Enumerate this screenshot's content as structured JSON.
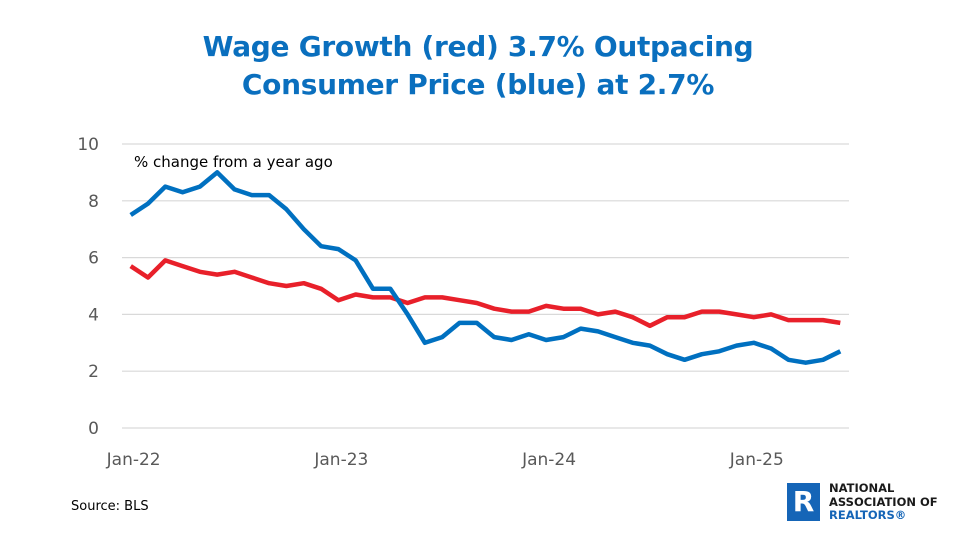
{
  "title": {
    "line1": "Wage Growth (red) 3.7% Outpacing",
    "line2": "Consumer Price (blue) at 2.7%"
  },
  "footer": {
    "source": "Source: BLS"
  },
  "logo": {
    "icon": "realtor-r-icon",
    "line1": "NATIONAL",
    "line2": "ASSOCIATION OF",
    "line3": "REALTORS®"
  },
  "chart_data": {
    "type": "line",
    "title": "Wage Growth (red) 3.7% Outpacing Consumer Price (blue) at 2.7%",
    "annotation": "% change from a year ago",
    "xlabel": "",
    "ylabel": "",
    "ylim": [
      0,
      10
    ],
    "yticks": [
      0,
      2,
      4,
      6,
      8,
      10
    ],
    "grid": true,
    "legend": "none",
    "x": [
      "Jan-22",
      "Feb-22",
      "Mar-22",
      "Apr-22",
      "May-22",
      "Jun-22",
      "Jul-22",
      "Aug-22",
      "Sep-22",
      "Oct-22",
      "Nov-22",
      "Dec-22",
      "Jan-23",
      "Feb-23",
      "Mar-23",
      "Apr-23",
      "May-23",
      "Jun-23",
      "Jul-23",
      "Aug-23",
      "Sep-23",
      "Oct-23",
      "Nov-23",
      "Dec-23",
      "Jan-24",
      "Feb-24",
      "Mar-24",
      "Apr-24",
      "May-24",
      "Jun-24",
      "Jul-24",
      "Aug-24",
      "Sep-24",
      "Oct-24",
      "Nov-24",
      "Dec-24",
      "Jan-25",
      "Feb-25",
      "Mar-25",
      "Apr-25",
      "May-25",
      "Jun-25"
    ],
    "xtick_labels": [
      {
        "index": 0,
        "label": "Jan-22"
      },
      {
        "index": 12,
        "label": "Jan-23"
      },
      {
        "index": 24,
        "label": "Jan-24"
      },
      {
        "index": 36,
        "label": "Jan-25"
      }
    ],
    "series": [
      {
        "name": "Consumer Price",
        "color": "#0070C0",
        "values": [
          7.5,
          7.9,
          8.5,
          8.3,
          8.5,
          9.0,
          8.4,
          8.2,
          8.2,
          7.7,
          7.0,
          6.4,
          6.3,
          5.9,
          4.9,
          4.9,
          4.0,
          3.0,
          3.2,
          3.7,
          3.7,
          3.2,
          3.1,
          3.3,
          3.1,
          3.2,
          3.5,
          3.4,
          3.2,
          3.0,
          2.9,
          2.6,
          2.4,
          2.6,
          2.7,
          2.9,
          3.0,
          2.8,
          2.4,
          2.3,
          2.4,
          2.7
        ]
      },
      {
        "name": "Wage Growth",
        "color": "#E8202A",
        "values": [
          5.7,
          5.3,
          5.9,
          5.7,
          5.5,
          5.4,
          5.5,
          5.3,
          5.1,
          5.0,
          5.1,
          4.9,
          4.5,
          4.7,
          4.6,
          4.6,
          4.4,
          4.6,
          4.6,
          4.5,
          4.4,
          4.2,
          4.1,
          4.1,
          4.3,
          4.2,
          4.2,
          4.0,
          4.1,
          3.9,
          3.6,
          3.9,
          3.9,
          4.1,
          4.1,
          4.0,
          3.9,
          4.0,
          3.8,
          3.8,
          3.8,
          3.7
        ]
      }
    ]
  }
}
